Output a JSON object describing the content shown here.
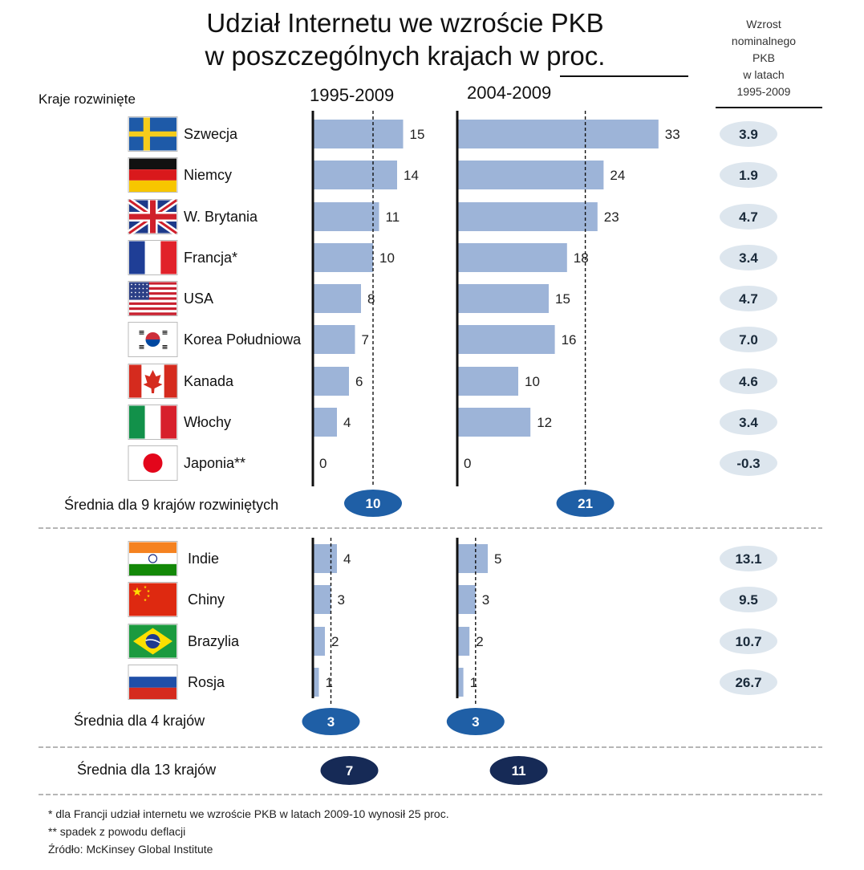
{
  "header": {
    "title_line1": "Udział Internetu we wzroście PKB",
    "title_line2": "w poszczególnych krajach w proc.",
    "side_header": [
      "Wzrost",
      "nominalnego",
      "PKB",
      "w latach",
      "1995-2009"
    ]
  },
  "group_labels": {
    "developed": "Kraje rozwinięte",
    "avg_developed": "Średnia dla 9 krajów rozwiniętych",
    "avg_emerging": "Średnia dla 4 krajów",
    "avg_all": "Średnia dla 13 krajów"
  },
  "chart_data": {
    "type": "bar",
    "orientation": "horizontal",
    "title": "Udział Internetu we wzroście PKB w poszczególnych krajach w proc.",
    "series": [
      {
        "name": "1995-2009",
        "values": [
          15,
          14,
          11,
          10,
          8,
          7,
          6,
          4,
          0,
          4,
          3,
          2,
          1
        ]
      },
      {
        "name": "2004-2009",
        "values": [
          33,
          24,
          23,
          18,
          15,
          16,
          10,
          12,
          0,
          5,
          3,
          2,
          1
        ]
      }
    ],
    "groups": [
      {
        "countries": [
          {
            "name": "Szwecja",
            "flag": "sweden-flag",
            "gdp_growth": "3.9"
          },
          {
            "name": "Niemcy",
            "flag": "germany-flag",
            "gdp_growth": "1.9"
          },
          {
            "name": "W. Brytania",
            "flag": "uk-flag",
            "gdp_growth": "4.7"
          },
          {
            "name": "Francja*",
            "flag": "france-flag",
            "gdp_growth": "3.4"
          },
          {
            "name": "USA",
            "flag": "usa-flag",
            "gdp_growth": "4.7"
          },
          {
            "name": "Korea Południowa",
            "flag": "south-korea-flag",
            "gdp_growth": "7.0"
          },
          {
            "name": "Kanada",
            "flag": "canada-flag",
            "gdp_growth": "4.6"
          },
          {
            "name": "Włochy",
            "flag": "italy-flag",
            "gdp_growth": "3.4"
          },
          {
            "name": "Japonia**",
            "flag": "japan-flag",
            "gdp_growth": "-0.3"
          }
        ],
        "averages": [
          10,
          21
        ]
      },
      {
        "countries": [
          {
            "name": "Indie",
            "flag": "india-flag",
            "gdp_growth": "13.1"
          },
          {
            "name": "Chiny",
            "flag": "china-flag",
            "gdp_growth": "9.5"
          },
          {
            "name": "Brazylia",
            "flag": "brazil-flag",
            "gdp_growth": "10.7"
          },
          {
            "name": "Rosja",
            "flag": "russia-flag",
            "gdp_growth": "26.7"
          }
        ],
        "averages": [
          3,
          3
        ]
      }
    ],
    "overall_averages": [
      7,
      11
    ],
    "colors": {
      "bar": "#9db4d8",
      "avg_group": "#1f5fa6",
      "avg_total": "#162a56",
      "pill": "#dde6ee"
    }
  },
  "footnotes": {
    "note1": "* dla Francji udział internetu we wzroście PKB w latach 2009-10 wynosił 25 proc.",
    "note2": "** spadek z powodu deflacji",
    "source": "Źródło: McKinsey Global Institute"
  }
}
